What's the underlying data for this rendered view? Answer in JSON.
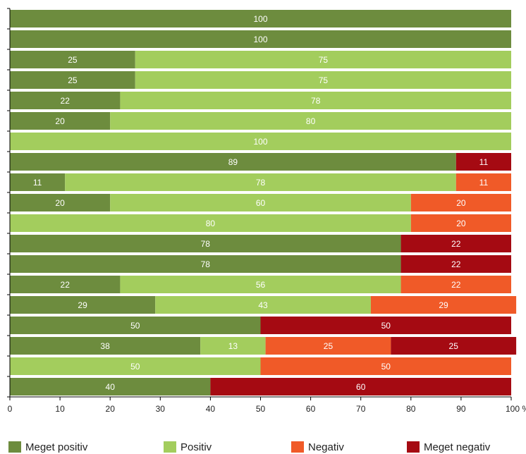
{
  "chart_data": {
    "type": "bar",
    "orientation": "horizontal",
    "stacked": true,
    "xlim": [
      0,
      100
    ],
    "xticks": [
      "0",
      "10",
      "20",
      "30",
      "40",
      "50",
      "60",
      "70",
      "80",
      "90",
      "100 %"
    ],
    "series": [
      {
        "name": "Meget positiv",
        "color": "#6d8c3e",
        "values": [
          100,
          100,
          25,
          25,
          22,
          20,
          0,
          89,
          11,
          20,
          0,
          78,
          78,
          22,
          29,
          50,
          38,
          0,
          40
        ]
      },
      {
        "name": "Positiv",
        "color": "#a3cd5d",
        "values": [
          0,
          0,
          75,
          75,
          78,
          80,
          100,
          0,
          78,
          60,
          80,
          0,
          0,
          56,
          43,
          0,
          13,
          50,
          0
        ]
      },
      {
        "name": "Negativ",
        "color": "#f05a28",
        "values": [
          0,
          0,
          0,
          0,
          0,
          0,
          0,
          0,
          11,
          20,
          20,
          0,
          0,
          22,
          29,
          0,
          25,
          50,
          0
        ]
      },
      {
        "name": "Meget negativ",
        "color": "#a50a12",
        "values": [
          0,
          0,
          0,
          0,
          0,
          0,
          0,
          11,
          0,
          0,
          0,
          22,
          22,
          0,
          0,
          50,
          25,
          0,
          60
        ]
      }
    ]
  }
}
